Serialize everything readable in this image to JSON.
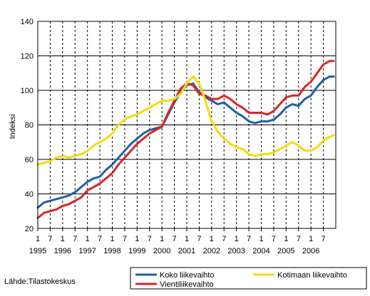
{
  "source_text": "Lähde:Tilastokeskus",
  "chart_data": {
    "type": "line",
    "ylabel": "Indeksi",
    "ylim": [
      20,
      140
    ],
    "yticks": [
      20,
      40,
      60,
      80,
      100,
      120,
      140
    ],
    "x_start": "1995-01",
    "x_end": "2006-12",
    "xtick_labels": [
      "1",
      "7",
      "1",
      "7",
      "1",
      "7",
      "1",
      "7",
      "1",
      "7",
      "1",
      "7",
      "1",
      "7",
      "1",
      "7",
      "1",
      "7",
      "1",
      "7",
      "1",
      "7",
      "1",
      "7"
    ],
    "year_labels": [
      "1995",
      "1996",
      "1997",
      "1998",
      "1999",
      "2000",
      "2001",
      "2002",
      "2003",
      "2004",
      "2005",
      "2006"
    ],
    "grid": true,
    "legend_position": "bottom",
    "series": [
      {
        "name": "Koko liikevaihto",
        "color": "#1F5FA8",
        "points": [
          [
            "1995-01",
            32
          ],
          [
            "1995-04",
            35
          ],
          [
            "1995-07",
            36
          ],
          [
            "1995-10",
            37
          ],
          [
            "1996-01",
            38
          ],
          [
            "1996-04",
            39
          ],
          [
            "1996-07",
            41
          ],
          [
            "1996-10",
            44
          ],
          [
            "1997-01",
            47
          ],
          [
            "1997-04",
            49
          ],
          [
            "1997-07",
            50
          ],
          [
            "1997-10",
            54
          ],
          [
            "1998-01",
            57
          ],
          [
            "1998-04",
            61
          ],
          [
            "1998-07",
            65
          ],
          [
            "1998-10",
            69
          ],
          [
            "1999-01",
            72
          ],
          [
            "1999-04",
            75
          ],
          [
            "1999-07",
            77
          ],
          [
            "1999-10",
            78
          ],
          [
            "2000-01",
            79
          ],
          [
            "2000-04",
            86
          ],
          [
            "2000-07",
            93
          ],
          [
            "2000-10",
            99
          ],
          [
            "2001-01",
            103
          ],
          [
            "2001-04",
            104
          ],
          [
            "2001-07",
            99
          ],
          [
            "2001-10",
            96
          ],
          [
            "2002-01",
            94
          ],
          [
            "2002-04",
            92
          ],
          [
            "2002-07",
            93
          ],
          [
            "2002-10",
            90
          ],
          [
            "2003-01",
            87
          ],
          [
            "2003-04",
            85
          ],
          [
            "2003-07",
            82
          ],
          [
            "2003-10",
            81
          ],
          [
            "2004-01",
            82
          ],
          [
            "2004-04",
            82
          ],
          [
            "2004-07",
            83
          ],
          [
            "2004-10",
            86
          ],
          [
            "2005-01",
            90
          ],
          [
            "2005-04",
            92
          ],
          [
            "2005-07",
            91
          ],
          [
            "2005-10",
            95
          ],
          [
            "2006-01",
            97
          ],
          [
            "2006-04",
            102
          ],
          [
            "2006-07",
            106
          ],
          [
            "2006-10",
            108
          ],
          [
            "2006-12",
            108
          ]
        ]
      },
      {
        "name": "Vientiliikevaihto",
        "color": "#D62728",
        "points": [
          [
            "1995-01",
            26
          ],
          [
            "1995-04",
            29
          ],
          [
            "1995-07",
            30
          ],
          [
            "1995-10",
            31
          ],
          [
            "1996-01",
            33
          ],
          [
            "1996-04",
            34
          ],
          [
            "1996-07",
            36
          ],
          [
            "1996-10",
            38
          ],
          [
            "1997-01",
            42
          ],
          [
            "1997-04",
            44
          ],
          [
            "1997-07",
            46
          ],
          [
            "1997-10",
            49
          ],
          [
            "1998-01",
            52
          ],
          [
            "1998-04",
            57
          ],
          [
            "1998-07",
            61
          ],
          [
            "1998-10",
            65
          ],
          [
            "1999-01",
            69
          ],
          [
            "1999-04",
            72
          ],
          [
            "1999-07",
            75
          ],
          [
            "1999-10",
            77
          ],
          [
            "2000-01",
            79
          ],
          [
            "2000-04",
            87
          ],
          [
            "2000-07",
            94
          ],
          [
            "2000-10",
            101
          ],
          [
            "2001-01",
            104
          ],
          [
            "2001-04",
            103
          ],
          [
            "2001-07",
            98
          ],
          [
            "2001-10",
            97
          ],
          [
            "2002-01",
            95
          ],
          [
            "2002-04",
            95
          ],
          [
            "2002-07",
            97
          ],
          [
            "2002-10",
            95
          ],
          [
            "2003-01",
            92
          ],
          [
            "2003-04",
            90
          ],
          [
            "2003-07",
            87
          ],
          [
            "2003-10",
            87
          ],
          [
            "2004-01",
            87
          ],
          [
            "2004-04",
            86
          ],
          [
            "2004-07",
            88
          ],
          [
            "2004-10",
            92
          ],
          [
            "2005-01",
            96
          ],
          [
            "2005-04",
            97
          ],
          [
            "2005-07",
            97
          ],
          [
            "2005-10",
            102
          ],
          [
            "2006-01",
            105
          ],
          [
            "2006-04",
            110
          ],
          [
            "2006-07",
            115
          ],
          [
            "2006-10",
            117
          ],
          [
            "2006-12",
            117
          ]
        ]
      },
      {
        "name": "Kotimaan liikevaihto",
        "color": "#F5DB0C",
        "points": [
          [
            "1995-01",
            57
          ],
          [
            "1995-04",
            58
          ],
          [
            "1995-07",
            59
          ],
          [
            "1995-10",
            61
          ],
          [
            "1996-01",
            62
          ],
          [
            "1996-04",
            61
          ],
          [
            "1996-07",
            62
          ],
          [
            "1996-10",
            63
          ],
          [
            "1997-01",
            65
          ],
          [
            "1997-04",
            68
          ],
          [
            "1997-07",
            70
          ],
          [
            "1997-10",
            72
          ],
          [
            "1998-01",
            75
          ],
          [
            "1998-04",
            80
          ],
          [
            "1998-07",
            83
          ],
          [
            "1998-10",
            85
          ],
          [
            "1999-01",
            86
          ],
          [
            "1999-04",
            88
          ],
          [
            "1999-07",
            90
          ],
          [
            "1999-10",
            92
          ],
          [
            "2000-01",
            94
          ],
          [
            "2000-04",
            94
          ],
          [
            "2000-07",
            95
          ],
          [
            "2000-10",
            98
          ],
          [
            "2001-01",
            104
          ],
          [
            "2001-04",
            108
          ],
          [
            "2001-07",
            104
          ],
          [
            "2001-10",
            94
          ],
          [
            "2002-01",
            82
          ],
          [
            "2002-04",
            76
          ],
          [
            "2002-07",
            72
          ],
          [
            "2002-10",
            69
          ],
          [
            "2003-01",
            67
          ],
          [
            "2003-04",
            66
          ],
          [
            "2003-07",
            63
          ],
          [
            "2003-10",
            62
          ],
          [
            "2004-01",
            63
          ],
          [
            "2004-04",
            63
          ],
          [
            "2004-07",
            64
          ],
          [
            "2004-10",
            66
          ],
          [
            "2005-01",
            68
          ],
          [
            "2005-04",
            70
          ],
          [
            "2005-07",
            68
          ],
          [
            "2005-10",
            65
          ],
          [
            "2006-01",
            65
          ],
          [
            "2006-04",
            67
          ],
          [
            "2006-07",
            71
          ],
          [
            "2006-10",
            73
          ],
          [
            "2006-12",
            74
          ]
        ]
      }
    ]
  }
}
